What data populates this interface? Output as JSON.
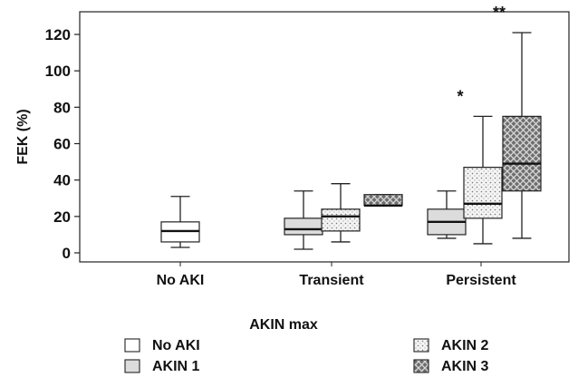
{
  "chart_data": {
    "type": "boxplot",
    "title": "",
    "xlabel": "AKIN max",
    "ylabel": "FEK (%)",
    "ylim": [
      0,
      130
    ],
    "yticks": [
      0,
      20,
      40,
      60,
      80,
      100,
      120
    ],
    "categories": [
      "No AKI",
      "Transient",
      "Persistent"
    ],
    "grid": false,
    "legend_position": "bottom",
    "series": [
      {
        "name": "No AKI",
        "pattern": "white",
        "boxes": [
          {
            "category": "No AKI",
            "min": 3,
            "q1": 6,
            "median": 12,
            "q3": 17,
            "max": 31
          }
        ]
      },
      {
        "name": "AKIN 1",
        "pattern": "light-gray",
        "boxes": [
          {
            "category": "Transient",
            "min": 2,
            "q1": 10,
            "median": 13,
            "q3": 19,
            "max": 34
          },
          {
            "category": "Persistent",
            "min": 8,
            "q1": 10,
            "median": 17,
            "q3": 24,
            "max": 34
          }
        ]
      },
      {
        "name": "AKIN 2",
        "pattern": "dotted",
        "boxes": [
          {
            "category": "Transient",
            "min": 6,
            "q1": 12,
            "median": 20,
            "q3": 24,
            "max": 38
          },
          {
            "category": "Persistent",
            "min": 5,
            "q1": 19,
            "median": 27,
            "q3": 47,
            "max": 75
          }
        ]
      },
      {
        "name": "AKIN 3",
        "pattern": "crosshatch",
        "boxes": [
          {
            "category": "Transient",
            "min": 26,
            "q1": 26,
            "median": 26,
            "q3": 32,
            "max": 32
          },
          {
            "category": "Persistent",
            "min": 8,
            "q1": 34,
            "median": 49,
            "q3": 75,
            "max": 121
          }
        ]
      }
    ],
    "annotations": [
      {
        "text": "*",
        "category": "Persistent",
        "series": "AKIN 2"
      },
      {
        "text": "**",
        "category": "Persistent",
        "series": "AKIN 3"
      }
    ]
  }
}
